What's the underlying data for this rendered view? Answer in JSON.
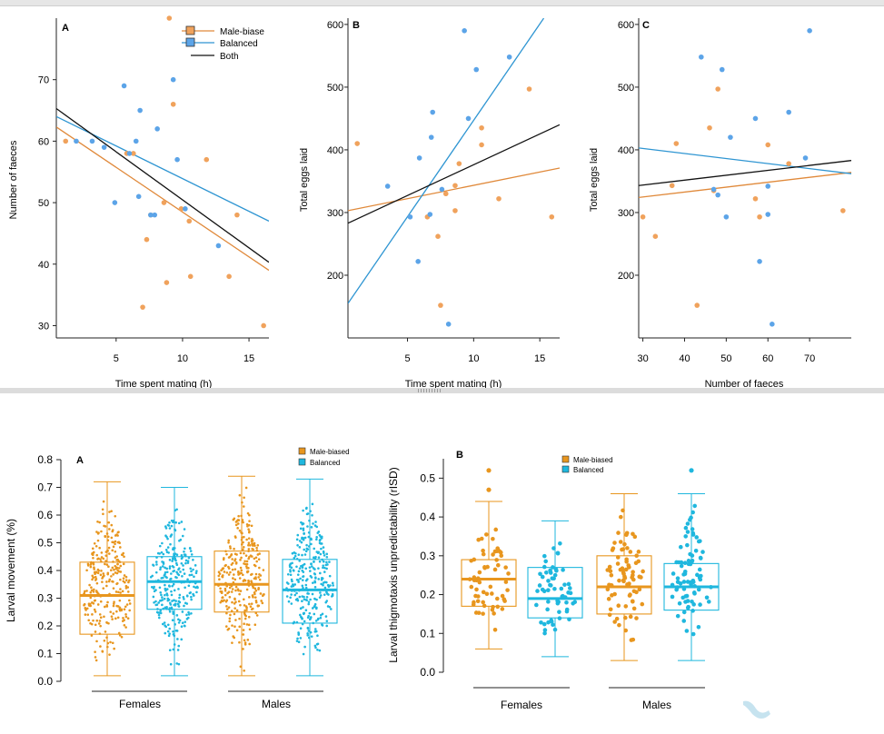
{
  "colors": {
    "top_orange": "#F0A25C",
    "top_blue": "#5CA4E8",
    "top_black": "#111111",
    "orange_line": "#E0893A",
    "blue_line": "#2E95D2",
    "bottom_orange": "#E8961E",
    "bottom_blue": "#1FB7DE"
  },
  "chart_data": [
    {
      "panel_label": "A",
      "type": "scatter",
      "xlabel": "Time spent mating (h)",
      "ylabel": "Number of faeces",
      "xlim": [
        0.5,
        16.5
      ],
      "ylim": [
        28,
        80
      ],
      "xticks": [
        5,
        10,
        15
      ],
      "yticks": [
        30,
        40,
        50,
        60,
        70
      ],
      "legend": {
        "position": "top-right",
        "entries": [
          {
            "label": "Male-biase",
            "marker": "square",
            "color": "orange"
          },
          {
            "label": "Balanced",
            "marker": "square",
            "color": "blue"
          },
          {
            "label": "Both",
            "marker": "line",
            "color": "black"
          }
        ]
      },
      "series": [
        {
          "group": "orange",
          "points": [
            [
              1.2,
              60
            ],
            [
              5.8,
              58
            ],
            [
              6.3,
              58
            ],
            [
              7.3,
              44
            ],
            [
              7.6,
              48
            ],
            [
              8.6,
              50
            ],
            [
              8.8,
              37
            ],
            [
              9.3,
              66
            ],
            [
              9.9,
              49
            ],
            [
              10.5,
              47
            ],
            [
              10.6,
              38
            ],
            [
              11.8,
              57
            ],
            [
              13.5,
              38
            ],
            [
              14.1,
              48
            ],
            [
              16.1,
              30
            ],
            [
              7.0,
              33
            ],
            [
              9.0,
              80
            ]
          ]
        },
        {
          "group": "blue",
          "points": [
            [
              2.0,
              60
            ],
            [
              3.2,
              60
            ],
            [
              4.1,
              59
            ],
            [
              4.9,
              50
            ],
            [
              5.6,
              69
            ],
            [
              6.0,
              58
            ],
            [
              6.5,
              60
            ],
            [
              6.7,
              51
            ],
            [
              6.8,
              65
            ],
            [
              7.6,
              48
            ],
            [
              7.9,
              48
            ],
            [
              8.1,
              62
            ],
            [
              9.3,
              70
            ],
            [
              9.6,
              57
            ],
            [
              10.2,
              49
            ],
            [
              12.7,
              43
            ]
          ]
        }
      ],
      "fit_lines": [
        {
          "group": "orange",
          "from": [
            0.5,
            62.3
          ],
          "to": [
            16.5,
            39.0
          ]
        },
        {
          "group": "blue",
          "from": [
            0.5,
            64.0
          ],
          "to": [
            16.5,
            47.0
          ]
        },
        {
          "group": "black",
          "from": [
            0.5,
            65.3
          ],
          "to": [
            16.5,
            40.3
          ]
        }
      ]
    },
    {
      "panel_label": "B",
      "type": "scatter",
      "xlabel": "Time spent mating (h)",
      "ylabel": "Total eggs laid",
      "xlim": [
        0.5,
        16.5
      ],
      "ylim": [
        100,
        610
      ],
      "xticks": [
        5,
        10,
        15
      ],
      "yticks": [
        200,
        300,
        400,
        500,
        600
      ],
      "series": [
        {
          "group": "orange",
          "points": [
            [
              1.2,
              410
            ],
            [
              6.5,
              293
            ],
            [
              7.3,
              262
            ],
            [
              7.5,
              152
            ],
            [
              7.9,
              330
            ],
            [
              8.6,
              303
            ],
            [
              8.9,
              378
            ],
            [
              10.6,
              435
            ],
            [
              10.6,
              408
            ],
            [
              11.9,
              322
            ],
            [
              14.2,
              497
            ],
            [
              15.9,
              293
            ],
            [
              8.6,
              343
            ]
          ]
        },
        {
          "group": "blue",
          "points": [
            [
              3.5,
              342
            ],
            [
              5.2,
              293
            ],
            [
              5.8,
              222
            ],
            [
              5.9,
              387
            ],
            [
              6.7,
              297
            ],
            [
              6.8,
              420
            ],
            [
              6.9,
              460
            ],
            [
              7.6,
              337
            ],
            [
              8.1,
              122
            ],
            [
              9.3,
              590
            ],
            [
              9.6,
              450
            ],
            [
              10.2,
              528
            ],
            [
              12.7,
              548
            ]
          ]
        }
      ],
      "fit_lines": [
        {
          "group": "orange",
          "from": [
            0.5,
            303
          ],
          "to": [
            16.5,
            371
          ]
        },
        {
          "group": "blue",
          "from": [
            0.5,
            155
          ],
          "to": [
            15.3,
            610
          ]
        },
        {
          "group": "black",
          "from": [
            0.5,
            283
          ],
          "to": [
            16.5,
            440
          ]
        }
      ]
    },
    {
      "panel_label": "C",
      "type": "scatter",
      "xlabel": "Number of faeces",
      "ylabel": "Total eggs laid",
      "xlim": [
        29,
        80
      ],
      "ylim": [
        100,
        610
      ],
      "xticks": [
        30,
        40,
        50,
        60,
        70
      ],
      "yticks": [
        200,
        300,
        400,
        500,
        600
      ],
      "series": [
        {
          "group": "orange",
          "points": [
            [
              30,
              293
            ],
            [
              33,
              262
            ],
            [
              38,
              410
            ],
            [
              43,
              152
            ],
            [
              46,
              435
            ],
            [
              47,
              335
            ],
            [
              48,
              497
            ],
            [
              57,
              322
            ],
            [
              58,
              293
            ],
            [
              60,
              408
            ],
            [
              65,
              378
            ],
            [
              78,
              303
            ],
            [
              37,
              343
            ]
          ]
        },
        {
          "group": "blue",
          "points": [
            [
              44,
              548
            ],
            [
              47,
              337
            ],
            [
              49,
              528
            ],
            [
              50,
              293
            ],
            [
              51,
              420
            ],
            [
              57,
              450
            ],
            [
              58,
              222
            ],
            [
              60,
              297
            ],
            [
              61,
              122
            ],
            [
              65,
              460
            ],
            [
              70,
              590
            ],
            [
              69,
              387
            ],
            [
              48,
              328
            ],
            [
              60,
              342
            ]
          ]
        }
      ],
      "fit_lines": [
        {
          "group": "orange",
          "from": [
            29,
            324
          ],
          "to": [
            80,
            364
          ]
        },
        {
          "group": "blue",
          "from": [
            29,
            403
          ],
          "to": [
            80,
            362
          ]
        },
        {
          "group": "black",
          "from": [
            29,
            343
          ],
          "to": [
            80,
            383
          ]
        }
      ]
    },
    {
      "panel_label": "A",
      "type": "box",
      "ylabel": "Larval movement (%)",
      "ylim": [
        0,
        0.8
      ],
      "yticks": [
        0.0,
        0.1,
        0.2,
        0.3,
        0.4,
        0.5,
        0.6,
        0.7,
        0.8
      ],
      "groups": [
        "Females",
        "Males"
      ],
      "legend": {
        "position": "top-right",
        "entries": [
          {
            "label": "Male-biased",
            "color": "orange"
          },
          {
            "label": "Balanced",
            "color": "blue"
          }
        ]
      },
      "boxes": [
        {
          "group": "Females",
          "series": "orange",
          "min": 0.02,
          "q1": 0.17,
          "median": 0.31,
          "q3": 0.43,
          "max": 0.72,
          "n": 280
        },
        {
          "group": "Females",
          "series": "blue",
          "min": 0.02,
          "q1": 0.26,
          "median": 0.36,
          "q3": 0.45,
          "max": 0.7,
          "n": 280
        },
        {
          "group": "Males",
          "series": "orange",
          "min": 0.02,
          "q1": 0.25,
          "median": 0.35,
          "q3": 0.47,
          "max": 0.74,
          "n": 300
        },
        {
          "group": "Males",
          "series": "blue",
          "min": 0.02,
          "q1": 0.21,
          "median": 0.33,
          "q3": 0.44,
          "max": 0.73,
          "n": 300
        }
      ]
    },
    {
      "panel_label": "B",
      "type": "box",
      "ylabel": "Larval thigmotaxis unpredictability (rISD)",
      "ylim": [
        0,
        0.55
      ],
      "yticks": [
        0.0,
        0.1,
        0.2,
        0.3,
        0.4,
        0.5
      ],
      "groups": [
        "Females",
        "Males"
      ],
      "legend": {
        "position": "top-center",
        "entries": [
          {
            "label": "Male-biased",
            "color": "orange"
          },
          {
            "label": "Balanced",
            "color": "blue"
          }
        ]
      },
      "boxes": [
        {
          "group": "Females",
          "series": "orange",
          "min": 0.06,
          "q1": 0.17,
          "median": 0.24,
          "q3": 0.29,
          "max": 0.44,
          "n": 60,
          "outliers": [
            0.52,
            0.47
          ]
        },
        {
          "group": "Females",
          "series": "blue",
          "min": 0.04,
          "q1": 0.14,
          "median": 0.19,
          "q3": 0.27,
          "max": 0.39,
          "n": 60
        },
        {
          "group": "Males",
          "series": "orange",
          "min": 0.03,
          "q1": 0.15,
          "median": 0.22,
          "q3": 0.3,
          "max": 0.46,
          "n": 80
        },
        {
          "group": "Males",
          "series": "blue",
          "min": 0.03,
          "q1": 0.16,
          "median": 0.22,
          "q3": 0.28,
          "max": 0.46,
          "n": 80,
          "outliers": [
            0.52
          ]
        }
      ]
    }
  ]
}
